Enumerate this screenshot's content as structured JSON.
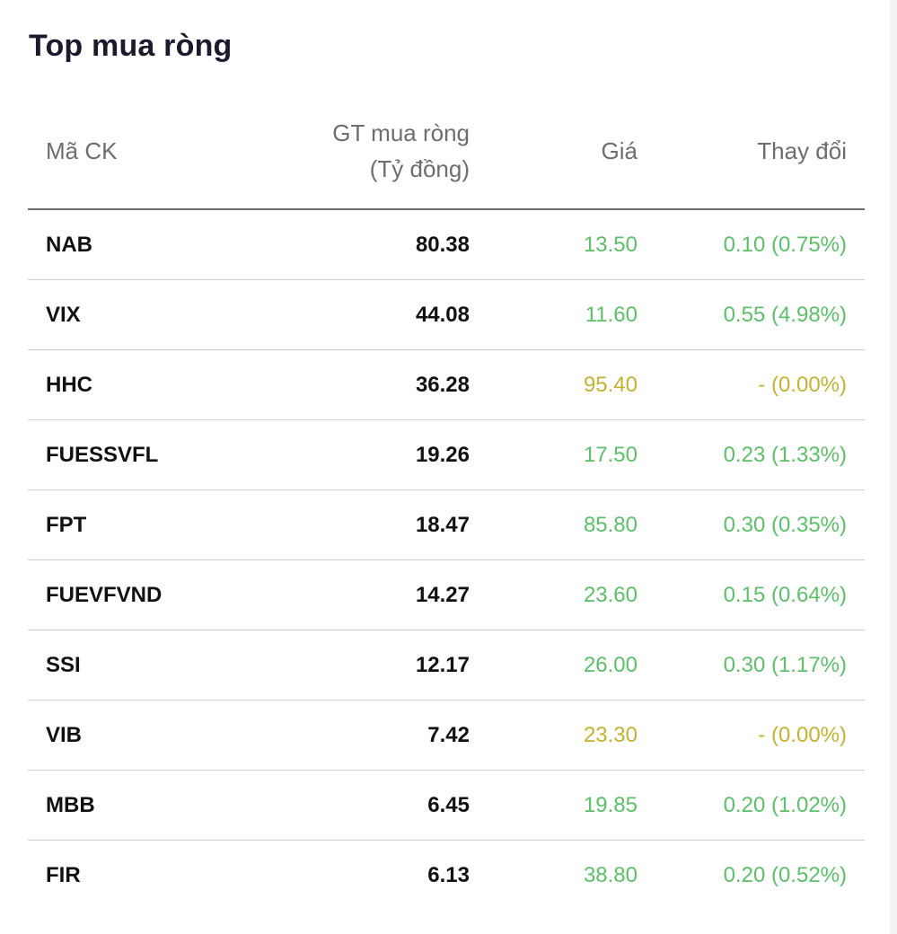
{
  "title": "Top mua ròng",
  "headers": {
    "code": "Mã CK",
    "value_line1": "GT mua ròng",
    "value_line2": "(Tỷ đồng)",
    "price": "Giá",
    "change": "Thay đổi"
  },
  "colors": {
    "up": "#5cc068",
    "reference": "#c4b233",
    "text": "#111111",
    "header_text": "#6d6d6d"
  },
  "rows": [
    {
      "code": "NAB",
      "value": "80.38",
      "price": "13.50",
      "change": "0.10 (0.75%)",
      "status": "up"
    },
    {
      "code": "VIX",
      "value": "44.08",
      "price": "11.60",
      "change": "0.55 (4.98%)",
      "status": "up"
    },
    {
      "code": "HHC",
      "value": "36.28",
      "price": "95.40",
      "change": "- (0.00%)",
      "status": "flat"
    },
    {
      "code": "FUESSVFL",
      "value": "19.26",
      "price": "17.50",
      "change": "0.23 (1.33%)",
      "status": "up"
    },
    {
      "code": "FPT",
      "value": "18.47",
      "price": "85.80",
      "change": "0.30 (0.35%)",
      "status": "up"
    },
    {
      "code": "FUEVFVND",
      "value": "14.27",
      "price": "23.60",
      "change": "0.15 (0.64%)",
      "status": "up"
    },
    {
      "code": "SSI",
      "value": "12.17",
      "price": "26.00",
      "change": "0.30 (1.17%)",
      "status": "up"
    },
    {
      "code": "VIB",
      "value": "7.42",
      "price": "23.30",
      "change": "- (0.00%)",
      "status": "flat"
    },
    {
      "code": "MBB",
      "value": "6.45",
      "price": "19.85",
      "change": "0.20 (1.02%)",
      "status": "up"
    },
    {
      "code": "FIR",
      "value": "6.13",
      "price": "38.80",
      "change": "0.20 (0.52%)",
      "status": "up"
    }
  ]
}
